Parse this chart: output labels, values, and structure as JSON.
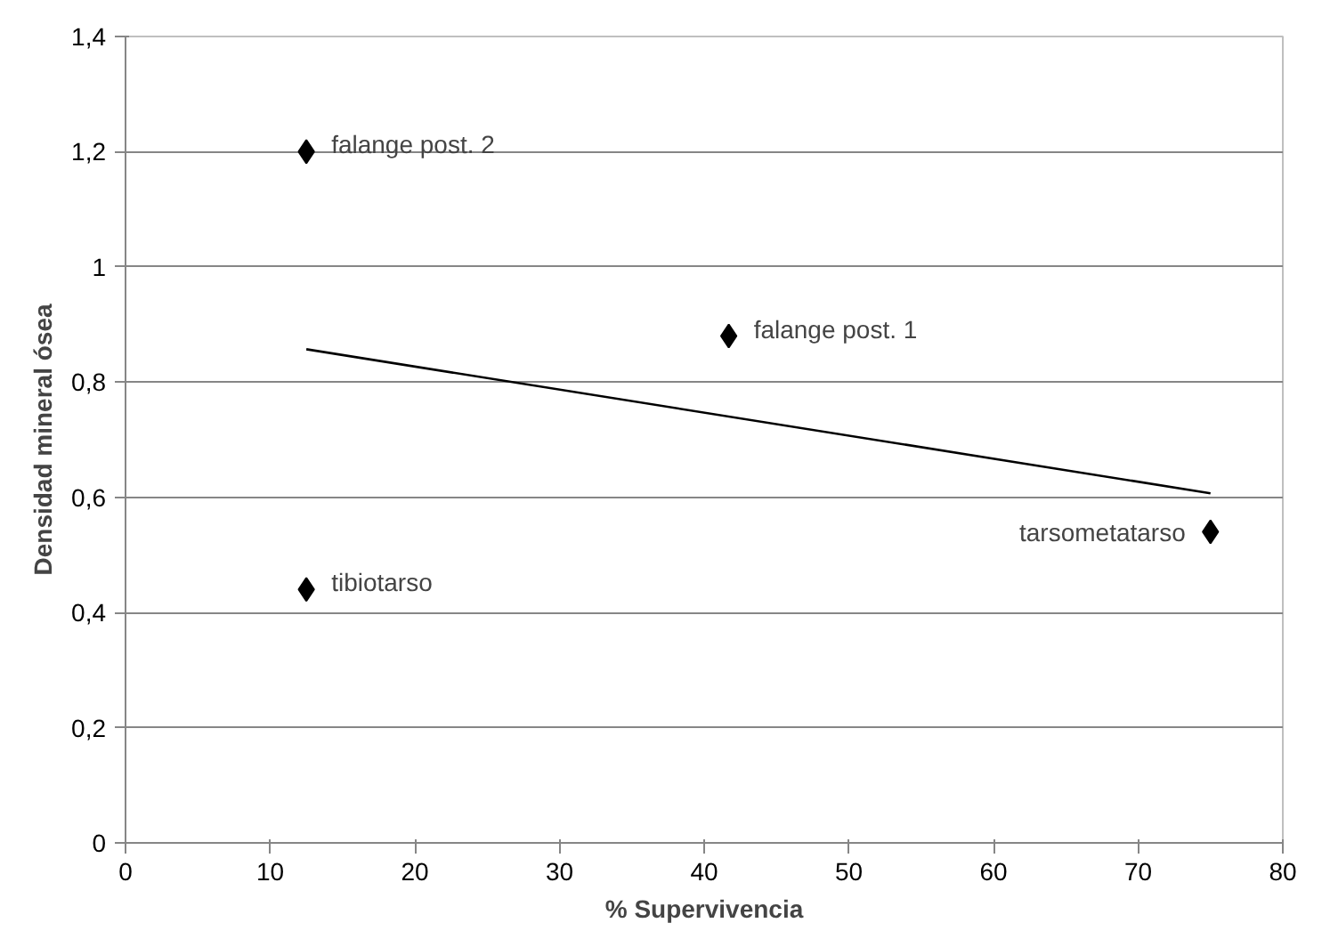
{
  "chart_data": {
    "type": "scatter",
    "xlabel": "% Supervivencia",
    "ylabel": "Densidad mineral ósea",
    "series": [
      {
        "color": "#000000",
        "marker": "diamond",
        "x": [
          12.5,
          41.7,
          12.5,
          75
        ],
        "values": [
          1.2,
          0.88,
          0.44,
          0.54
        ]
      },
      {
        "type": "line",
        "color": "#000000",
        "x": [
          12.5,
          75
        ],
        "values": [
          0.857,
          0.607
        ]
      }
    ],
    "annotations": [
      {
        "text": "falange post. 2",
        "x": 12.5,
        "y": 1.2
      },
      {
        "text": "falange post. 1",
        "x": 41.7,
        "y": 0.88
      },
      {
        "text": "tibiotarso",
        "x": 12.5,
        "y": 0.44
      },
      {
        "text": "tarsometatarso",
        "x": 75,
        "y": 0.54
      }
    ],
    "xlim": [
      0,
      80
    ],
    "xticks": [
      0,
      10,
      20,
      30,
      40,
      50,
      60,
      70,
      80
    ],
    "ylim": [
      0,
      1.4
    ],
    "yticks": [
      0,
      {
        "value": 0.2,
        "label": "0,2"
      },
      {
        "value": 0.4,
        "label": "0,4"
      },
      {
        "value": 0.6,
        "label": "0,6"
      },
      {
        "value": 0.8,
        "label": "0,8"
      },
      1,
      {
        "value": 1.2,
        "label": "1,2"
      },
      {
        "value": 1.4,
        "label": "1,4"
      }
    ],
    "grid": "y",
    "line_style": "solid"
  }
}
